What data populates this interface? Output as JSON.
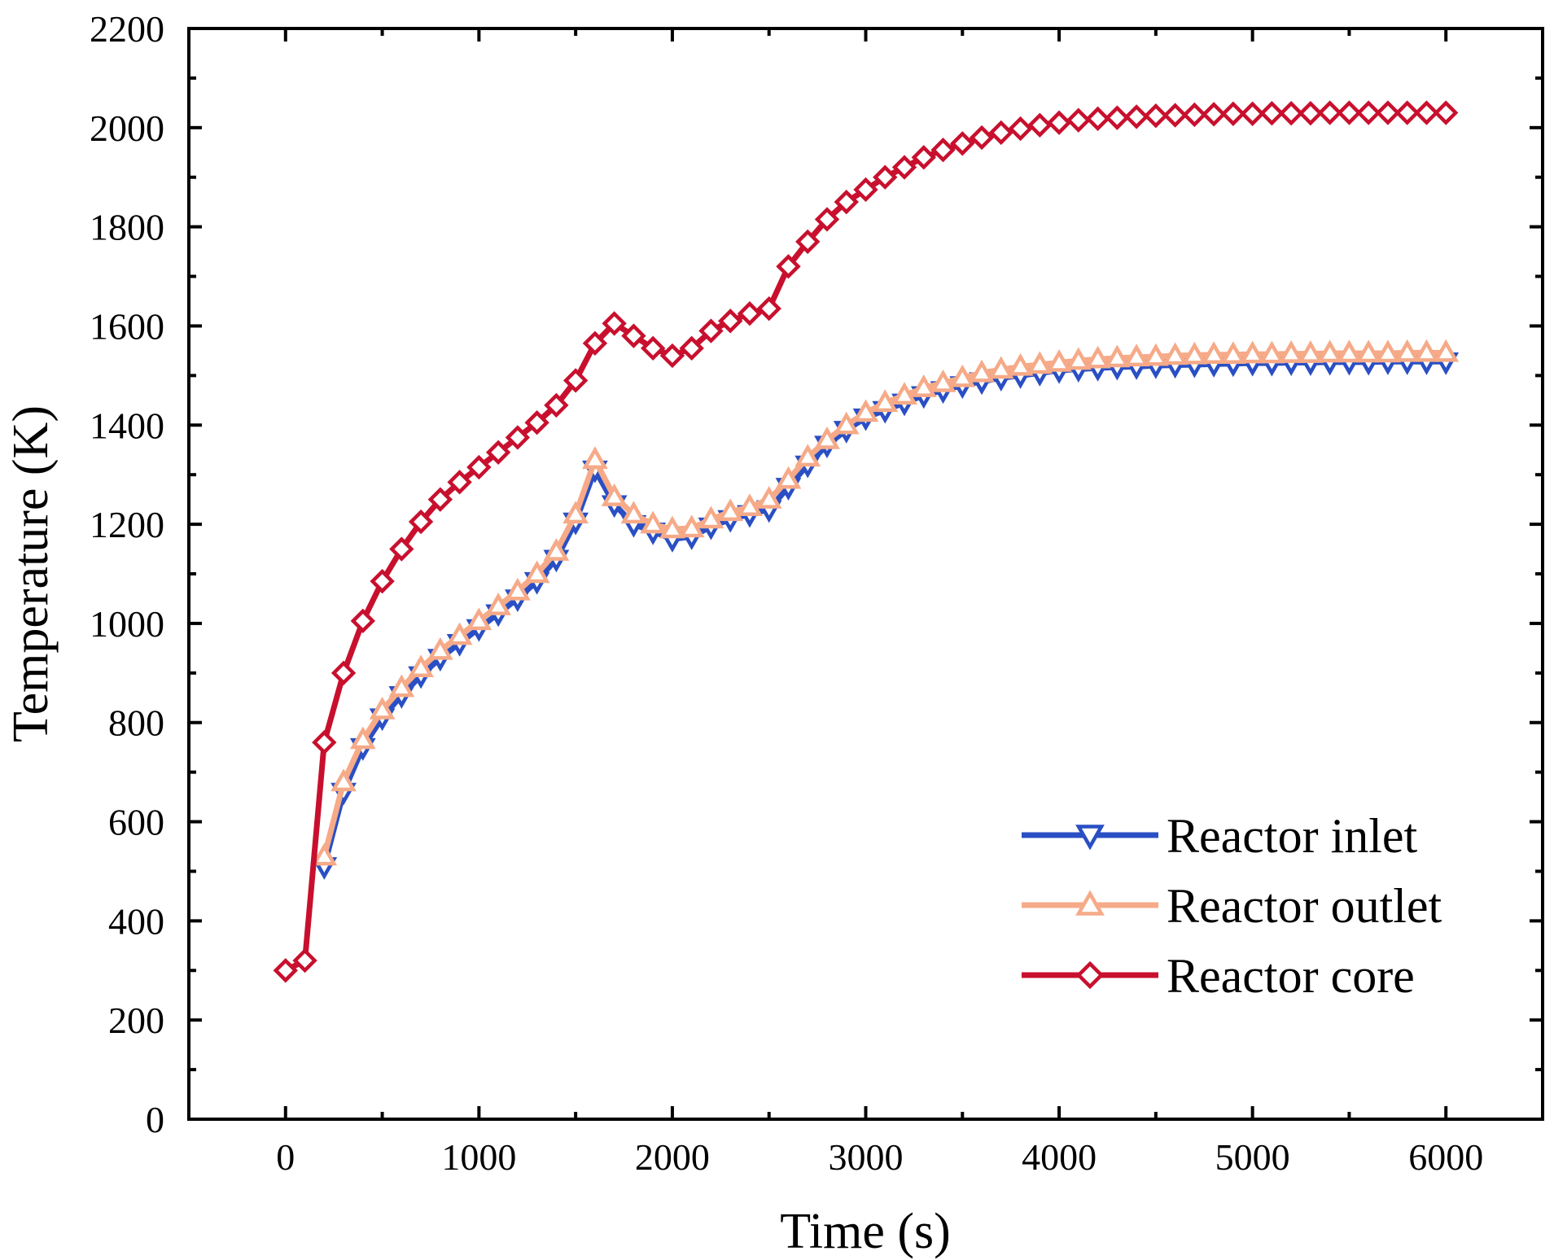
{
  "chart_data": {
    "type": "line",
    "title": "",
    "xlabel": "Time (s)",
    "ylabel": "Temperature (K)",
    "xlim": [
      -500,
      6500
    ],
    "ylim": [
      0,
      2200
    ],
    "xticks": [
      0,
      1000,
      2000,
      3000,
      4000,
      5000,
      6000
    ],
    "yticks": [
      0,
      200,
      400,
      600,
      800,
      1000,
      1200,
      1400,
      1600,
      1800,
      2000,
      2200
    ],
    "grid": false,
    "legend_position": "bottom-right",
    "series": [
      {
        "name": "Reactor inlet",
        "color": "#2a4fc4",
        "marker": "triangle-down",
        "x": [
          200,
          300,
          400,
          500,
          600,
          700,
          800,
          900,
          1000,
          1100,
          1200,
          1300,
          1400,
          1500,
          1600,
          1700,
          1800,
          1900,
          2000,
          2100,
          2200,
          2300,
          2400,
          2500,
          2600,
          2700,
          2800,
          2900,
          3000,
          3100,
          3200,
          3300,
          3400,
          3500,
          3600,
          3700,
          3800,
          3900,
          4000,
          4100,
          4200,
          4300,
          4400,
          4500,
          4600,
          4700,
          4800,
          4900,
          5000,
          5100,
          5200,
          5300,
          5400,
          5500,
          5600,
          5700,
          5800,
          5900,
          6000
        ],
        "y": [
          510,
          660,
          750,
          810,
          855,
          895,
          930,
          960,
          990,
          1020,
          1050,
          1085,
          1130,
          1205,
          1310,
          1240,
          1200,
          1185,
          1170,
          1175,
          1195,
          1210,
          1220,
          1230,
          1275,
          1320,
          1360,
          1390,
          1415,
          1430,
          1445,
          1460,
          1470,
          1480,
          1488,
          1495,
          1500,
          1505,
          1510,
          1513,
          1515,
          1517,
          1518,
          1520,
          1521,
          1522,
          1523,
          1524,
          1525,
          1525,
          1526,
          1526,
          1527,
          1527,
          1527,
          1528,
          1528,
          1528,
          1528
        ]
      },
      {
        "name": "Reactor outlet",
        "color": "#f6aa88",
        "marker": "triangle-up",
        "x": [
          200,
          300,
          400,
          500,
          600,
          700,
          800,
          900,
          1000,
          1100,
          1200,
          1300,
          1400,
          1500,
          1600,
          1700,
          1800,
          1900,
          2000,
          2100,
          2200,
          2300,
          2400,
          2500,
          2600,
          2700,
          2800,
          2900,
          3000,
          3100,
          3200,
          3300,
          3400,
          3500,
          3600,
          3700,
          3800,
          3900,
          4000,
          4100,
          4200,
          4300,
          4400,
          4500,
          4600,
          4700,
          4800,
          4900,
          5000,
          5100,
          5200,
          5300,
          5400,
          5500,
          5600,
          5700,
          5800,
          5900,
          6000
        ],
        "y": [
          530,
          680,
          765,
          825,
          870,
          910,
          945,
          975,
          1005,
          1035,
          1065,
          1100,
          1145,
          1220,
          1330,
          1255,
          1220,
          1200,
          1190,
          1192,
          1210,
          1225,
          1235,
          1250,
          1290,
          1335,
          1370,
          1400,
          1425,
          1445,
          1460,
          1475,
          1485,
          1495,
          1505,
          1512,
          1518,
          1522,
          1526,
          1530,
          1533,
          1535,
          1537,
          1538,
          1540,
          1541,
          1542,
          1542,
          1543,
          1543,
          1544,
          1544,
          1545,
          1545,
          1545,
          1545,
          1546,
          1546,
          1546
        ]
      },
      {
        "name": "Reactor core",
        "color": "#c8102e",
        "marker": "diamond",
        "x": [
          0,
          100,
          200,
          300,
          400,
          500,
          600,
          700,
          800,
          900,
          1000,
          1100,
          1200,
          1300,
          1400,
          1500,
          1600,
          1700,
          1800,
          1900,
          2000,
          2100,
          2200,
          2300,
          2400,
          2500,
          2600,
          2700,
          2800,
          2900,
          3000,
          3100,
          3200,
          3300,
          3400,
          3500,
          3600,
          3700,
          3800,
          3900,
          4000,
          4100,
          4200,
          4300,
          4400,
          4500,
          4600,
          4700,
          4800,
          4900,
          5000,
          5100,
          5200,
          5300,
          5400,
          5500,
          5600,
          5700,
          5800,
          5900,
          6000
        ],
        "y": [
          300,
          320,
          760,
          900,
          1005,
          1085,
          1150,
          1205,
          1250,
          1285,
          1315,
          1345,
          1375,
          1405,
          1440,
          1490,
          1565,
          1605,
          1580,
          1555,
          1540,
          1555,
          1590,
          1610,
          1625,
          1635,
          1720,
          1770,
          1815,
          1850,
          1875,
          1900,
          1920,
          1940,
          1955,
          1968,
          1980,
          1990,
          1998,
          2005,
          2010,
          2015,
          2018,
          2020,
          2022,
          2024,
          2025,
          2026,
          2027,
          2028,
          2028,
          2029,
          2029,
          2029,
          2030,
          2030,
          2030,
          2030,
          2030,
          2030,
          2030
        ]
      }
    ]
  }
}
